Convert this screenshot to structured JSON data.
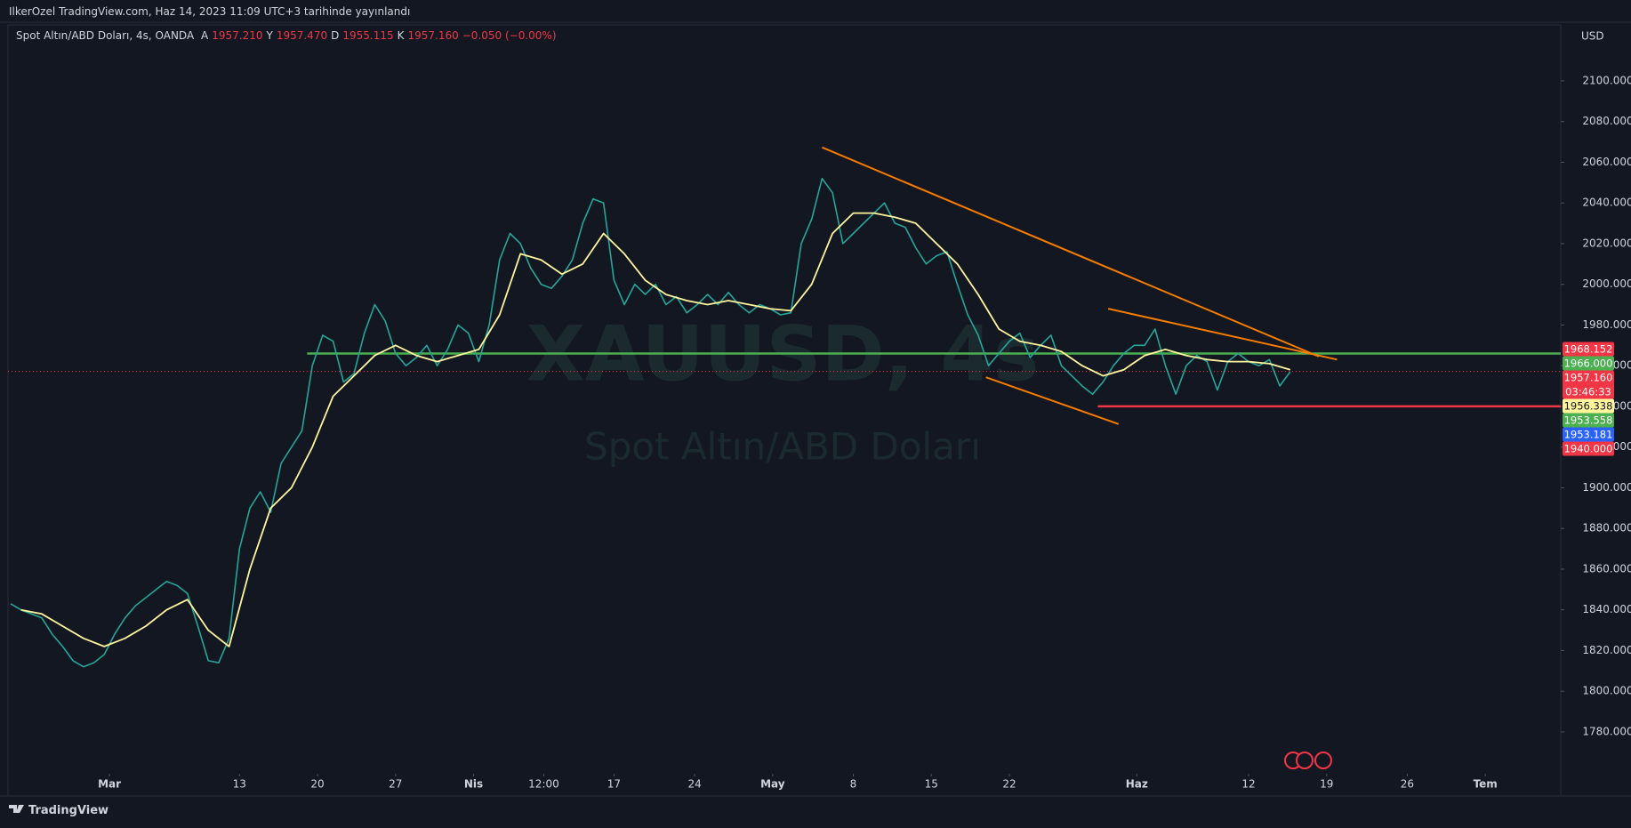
{
  "header": {
    "published": "IlkerOzel TradingView.com, Haz 14, 2023 11:09 UTC+3 tarihinde yayınlandı"
  },
  "legend": {
    "symbol": "Spot Altın/ABD Doları, 4s, OANDA",
    "ohlc": [
      {
        "key": "A",
        "value": "1957.210"
      },
      {
        "key": "Y",
        "value": "1957.470"
      },
      {
        "key": "D",
        "value": "1955.115"
      },
      {
        "key": "K",
        "value": "1957.160"
      }
    ],
    "change": "−0.050 (−0.00%)"
  },
  "footer": {
    "brand": "TradingView"
  },
  "chart_data": {
    "type": "line",
    "currency": "USD",
    "watermark": {
      "symbol": "XAUUSD, 4s",
      "name": "Spot Altın/ABD Doları"
    },
    "x": [
      -38,
      -34,
      -30,
      -26,
      -22,
      -18,
      -14,
      -10,
      -6,
      -2,
      2,
      6,
      10,
      14,
      18,
      22,
      26,
      30,
      34,
      38,
      42,
      46,
      50,
      54,
      58,
      62,
      66,
      70,
      74,
      78,
      82,
      86,
      90,
      94,
      98,
      102,
      106,
      110,
      114,
      118,
      122,
      126,
      130,
      134,
      138,
      142,
      146,
      150,
      154,
      158,
      162,
      166,
      170,
      174,
      178,
      182,
      186,
      190,
      194,
      198,
      202,
      206,
      210,
      214,
      218,
      222,
      226,
      230,
      234,
      238,
      242,
      246,
      250,
      254,
      258,
      262,
      266,
      270,
      274,
      278,
      282,
      286,
      290,
      294,
      298,
      302,
      306,
      310,
      314,
      318,
      322,
      326,
      330,
      334,
      338,
      342,
      346,
      350,
      354,
      358,
      362,
      366,
      370,
      374,
      378,
      382,
      386,
      390,
      394,
      398,
      402,
      406,
      410,
      414,
      418,
      422,
      426,
      430,
      434,
      438,
      442,
      446,
      450,
      454
    ],
    "series": [
      {
        "color": "#26a69a",
        "values": [
          1843,
          1840,
          1838,
          1836,
          1828,
          1822,
          1815,
          1812,
          1814,
          1818,
          1828,
          1836,
          1842,
          1846,
          1850,
          1854,
          1852,
          1848,
          1832,
          1815,
          1814,
          1826,
          1870,
          1890,
          1898,
          1888,
          1912,
          1920,
          1928,
          1960,
          1975,
          1972,
          1952,
          1956,
          1976,
          1990,
          1982,
          1966,
          1960,
          1964,
          1970,
          1960,
          1968,
          1980,
          1976,
          1962,
          1980,
          2012,
          2025,
          2020,
          2008,
          2000,
          1998,
          2004,
          2012,
          2030,
          2042,
          2040,
          2002,
          1990,
          2000,
          1995,
          2000,
          1990,
          1994,
          1986,
          1990,
          1995,
          1990,
          1996,
          1990,
          1986,
          1990,
          1988,
          1985,
          1986,
          2020,
          2032,
          2052,
          2045,
          2020,
          2025,
          2030,
          2035,
          2040,
          2030,
          2028,
          2018,
          2010,
          2014,
          2016,
          2000,
          1985,
          1975,
          1960,
          1966,
          1972,
          1976,
          1964,
          1970,
          1975,
          1960,
          1955,
          1950,
          1946,
          1952,
          1960,
          1966,
          1970,
          1970,
          1978,
          1960,
          1946,
          1960,
          1965,
          1962,
          1948,
          1962,
          1966,
          1962,
          1960,
          1963,
          1950,
          1957
        ]
      },
      {
        "color": "#fff59d",
        "x": [
          -34,
          -26,
          -18,
          -10,
          -2,
          6,
          14,
          22,
          30,
          38,
          46,
          54,
          62,
          70,
          78,
          86,
          94,
          102,
          110,
          118,
          126,
          134,
          142,
          150,
          158,
          166,
          174,
          182,
          190,
          198,
          206,
          214,
          222,
          230,
          238,
          246,
          254,
          262,
          270,
          278,
          286,
          294,
          302,
          310,
          318,
          326,
          334,
          342,
          350,
          358,
          366,
          374,
          382,
          390,
          398,
          406,
          414,
          422,
          430,
          438,
          446,
          454
        ],
        "values": [
          1840,
          1838,
          1832,
          1826,
          1822,
          1826,
          1832,
          1840,
          1845,
          1830,
          1822,
          1860,
          1890,
          1900,
          1920,
          1945,
          1955,
          1965,
          1970,
          1965,
          1962,
          1965,
          1968,
          1985,
          2015,
          2012,
          2005,
          2010,
          2025,
          2015,
          2002,
          1995,
          1992,
          1990,
          1992,
          1990,
          1988,
          1987,
          2000,
          2025,
          2035,
          2035,
          2033,
          2030,
          2020,
          2010,
          1995,
          1978,
          1972,
          1970,
          1967,
          1960,
          1955,
          1958,
          1965,
          1968,
          1965,
          1963,
          1962,
          1962,
          1961,
          1958
        ]
      }
    ],
    "trendlines": [
      {
        "color": "#f57c00",
        "x": [
          274,
          465
        ],
        "y": [
          2067.3,
          1964.5
        ]
      },
      {
        "color": "#f57c00",
        "x": [
          337,
          388
        ],
        "y": [
          1954.3,
          1931.3
        ]
      },
      {
        "color": "#f57c00",
        "x": [
          384,
          472
        ],
        "y": [
          1988,
          1963
        ]
      }
    ],
    "price_line": {
      "value": 1957.16,
      "color": "#f23645"
    },
    "badges": [
      {
        "value": 1968.152,
        "label": "1968.152",
        "color": "#f23645"
      },
      {
        "value": 1966,
        "label": "1966.000",
        "color": "#4caf50",
        "line_from": 76
      },
      {
        "value": 1957.16,
        "label": "1957.160",
        "color": "#f23645",
        "countdown": "03:46:33"
      },
      {
        "value": 1956.338,
        "label": "1956.338",
        "color": "#fff59d",
        "text_color": "#131722"
      },
      {
        "value": 1953.558,
        "label": "1953.558",
        "color": "#4caf50"
      },
      {
        "value": 1953.181,
        "label": "1953.181",
        "color": "#2962ff"
      },
      {
        "value": 1940,
        "label": "1940.000",
        "color": "#f23645",
        "line_from": 380
      }
    ],
    "xlim": [
      -39,
      558
    ],
    "xticks": [
      {
        "value": 0,
        "label": "Mar"
      },
      {
        "value": 50,
        "label": "13"
      },
      {
        "value": 80,
        "label": "20"
      },
      {
        "value": 110,
        "label": "27"
      },
      {
        "value": 140,
        "label": "Nis"
      },
      {
        "value": 167,
        "label": "12:00"
      },
      {
        "value": 194,
        "label": "17"
      },
      {
        "value": 225,
        "label": "24"
      },
      {
        "value": 255,
        "label": "May"
      },
      {
        "value": 286,
        "label": "8"
      },
      {
        "value": 316,
        "label": "15"
      },
      {
        "value": 346,
        "label": "22"
      },
      {
        "value": 395,
        "label": "Haz"
      },
      {
        "value": 438,
        "label": "12"
      },
      {
        "value": 468,
        "label": "19"
      },
      {
        "value": 499,
        "label": "26"
      },
      {
        "value": 529,
        "label": "Tem"
      }
    ],
    "ylim": [
      1760.3,
      2127.5
    ],
    "yticks": [
      {
        "value": 1780,
        "label": "1780.000"
      },
      {
        "value": 1800,
        "label": "1800.000"
      },
      {
        "value": 1820,
        "label": "1820.000"
      },
      {
        "value": 1840,
        "label": "1840.000"
      },
      {
        "value": 1860,
        "label": "1860.000"
      },
      {
        "value": 1880,
        "label": "1880.000"
      },
      {
        "value": 1900,
        "label": "1900.000"
      },
      {
        "value": 1920,
        "label": "1920.000"
      },
      {
        "value": 1940,
        "label": "1940.000"
      },
      {
        "value": 1960,
        "label": "1960.000"
      },
      {
        "value": 1980,
        "label": "1980.000"
      },
      {
        "value": 2000,
        "label": "2000.000"
      },
      {
        "value": 2020,
        "label": "2020.000"
      },
      {
        "value": 2040,
        "label": "2040.000"
      },
      {
        "value": 2060,
        "label": "2060.000"
      },
      {
        "value": 2080,
        "label": "2080.000"
      },
      {
        "value": 2100,
        "label": "2100.000"
      }
    ]
  }
}
